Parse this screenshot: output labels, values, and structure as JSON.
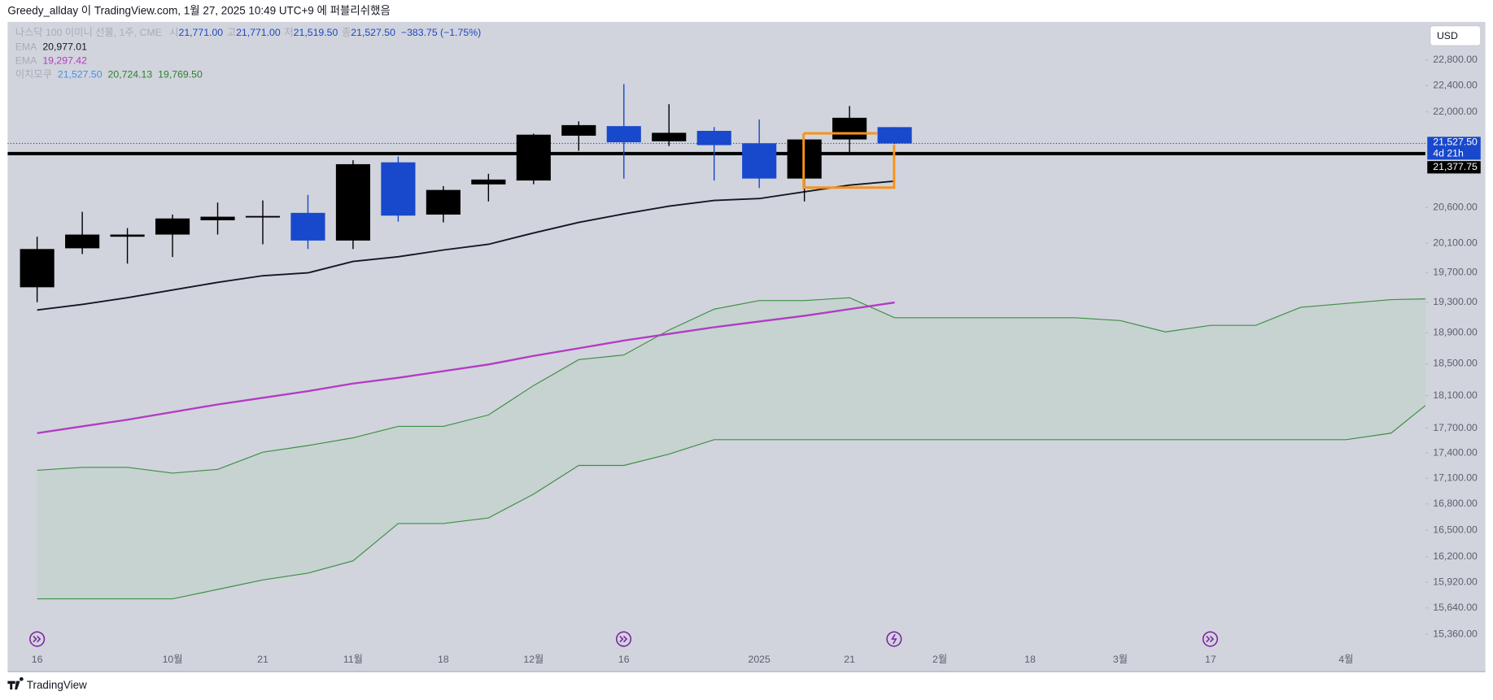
{
  "header": "Greedy_allday 이 TradingView.com, 1월 27, 2025 10:49 UTC+9 에 퍼블리쉬했음",
  "footer_brand": "TradingView",
  "chart_data": {
    "type": "candlestick",
    "currency": "USD",
    "log": true,
    "grid": false,
    "ylim": [
      14972,
      23405
    ],
    "yticks": [
      {
        "value": 22800,
        "label": "22,800.00"
      },
      {
        "value": 22400,
        "label": "22,400.00"
      },
      {
        "value": 22000,
        "label": "22,000.00"
      },
      {
        "value": 20600,
        "label": "20,600.00"
      },
      {
        "value": 20100,
        "label": "20,100.00"
      },
      {
        "value": 19700,
        "label": "19,700.00"
      },
      {
        "value": 19300,
        "label": "19,300.00"
      },
      {
        "value": 18900,
        "label": "18,900.00"
      },
      {
        "value": 18500,
        "label": "18,500.00"
      },
      {
        "value": 18100,
        "label": "18,100.00"
      },
      {
        "value": 17700,
        "label": "17,700.00"
      },
      {
        "value": 17400,
        "label": "17,400.00"
      },
      {
        "value": 17100,
        "label": "17,100.00"
      },
      {
        "value": 16800,
        "label": "16,800.00"
      },
      {
        "value": 16500,
        "label": "16,500.00"
      },
      {
        "value": 16200,
        "label": "16,200.00"
      },
      {
        "value": 15920,
        "label": "15,920.00"
      },
      {
        "value": 15640,
        "label": "15,640.00"
      },
      {
        "value": 15360,
        "label": "15,360.00"
      }
    ],
    "categories": [
      "16",
      null,
      null,
      "10월",
      null,
      "21",
      null,
      "11월",
      null,
      "18",
      null,
      "12월",
      null,
      "16",
      null,
      null,
      "2025",
      null,
      "21",
      null,
      "2월",
      null,
      "18",
      null,
      "3월",
      null,
      "17",
      null,
      null,
      "4월",
      null,
      null
    ],
    "up_color": "#000000",
    "down_color": "#1848cc",
    "open": [
      19500,
      20030,
      20190,
      20220,
      20420,
      20470,
      20524,
      20137,
      21250,
      20500,
      20930,
      20986,
      21643,
      21786,
      21560,
      21715,
      21530,
      21014,
      21587,
      21771,
      null,
      null,
      null,
      null,
      null,
      null,
      null,
      null,
      null,
      null,
      null,
      null
    ],
    "high": [
      20190,
      20540,
      20310,
      20500,
      20670,
      20700,
      20780,
      21280,
      21335,
      20905,
      21083,
      21673,
      21857,
      22424,
      22117,
      21772,
      21886,
      21590,
      22089,
      21771,
      null,
      null,
      null,
      null,
      null,
      null,
      null,
      null,
      null,
      null,
      null,
      null
    ],
    "low": [
      19300,
      19950,
      19820,
      19910,
      20220,
      20085,
      20020,
      20020,
      20400,
      20390,
      20686,
      20932,
      21420,
      21014,
      21489,
      20986,
      20877,
      20686,
      21375,
      21519.5,
      null,
      null,
      null,
      null,
      null,
      null,
      null,
      null,
      null,
      null,
      null,
      null
    ],
    "close": [
      20020,
      20220,
      20220,
      20445,
      20470,
      20480,
      20137,
      21223,
      20485,
      20850,
      21000,
      21658,
      21801,
      21545,
      21686,
      21503,
      21014,
      21587,
      21911.25,
      21527.5,
      null,
      null,
      null,
      null,
      null,
      null,
      null,
      null,
      null,
      null,
      null,
      null
    ],
    "lines": [
      {
        "color": "#131722",
        "values": [
          19197,
          19272,
          19361,
          19463,
          19566,
          19656,
          19694,
          19850,
          19914,
          20006,
          20085,
          20243,
          20390,
          20510,
          20619,
          20700,
          20727,
          20823,
          20919,
          20977.01,
          null,
          null,
          null,
          null,
          null,
          null,
          null,
          null,
          null,
          null,
          null,
          null
        ]
      },
      {
        "color": "#b33bc3",
        "values": [
          17639,
          17721,
          17802,
          17896,
          17990,
          18072,
          18156,
          18251,
          18323,
          18407,
          18492,
          18601,
          18699,
          18798,
          18885,
          18971,
          19046,
          19121,
          19209,
          19297.42,
          null,
          null,
          null,
          null,
          null,
          null,
          null,
          null,
          null,
          null,
          null,
          null
        ]
      }
    ],
    "cloud": {
      "color": "#3f8f45",
      "fill": "#c4d2cf",
      "upper": [
        17194,
        17228,
        17228,
        17160,
        17205,
        17409,
        17489,
        17582,
        17721,
        17721,
        17861,
        18226,
        18553,
        18613,
        18934,
        19209,
        19323,
        19323,
        19361,
        19096,
        19096,
        19096,
        19096,
        19096,
        19058,
        18910,
        18996,
        18996,
        19234,
        19285,
        19335,
        19348
      ],
      "lower": [
        15738,
        15738,
        15738,
        15738,
        15841,
        15945,
        16019,
        16155,
        16575,
        16575,
        16640,
        16914,
        17251,
        17251,
        17386,
        17559,
        17559,
        17559,
        17559,
        17559,
        17559,
        17559,
        17559,
        17559,
        17559,
        17559,
        17559,
        17559,
        17559,
        17559,
        17639,
        18085
      ]
    },
    "hline": {
      "value": 21377.75,
      "label": "21,377.75",
      "color": "#000000"
    },
    "last_price": {
      "value": 21527.5,
      "label": "21,527.50",
      "countdown": "4d 21h",
      "color": "#1848cc"
    },
    "legend": {
      "symbol": "나스닥 100 이미니 선물, 1주, CME",
      "ohlc": [
        {
          "key": "시",
          "value": "21,771.00"
        },
        {
          "key": "고",
          "value": "21,771.00"
        },
        {
          "key": "저",
          "value": "21,519.50"
        },
        {
          "key": "종",
          "value": "21,527.50"
        }
      ],
      "change": "−383.75 (−1.75%)",
      "value_color": "#1c47c7",
      "indicators": [
        {
          "name": "EMA",
          "values": [
            "20,977.01"
          ],
          "colors": [
            "#131722"
          ]
        },
        {
          "name": "EMA",
          "values": [
            "19,297.42"
          ],
          "colors": [
            "#b33bc3"
          ]
        },
        {
          "name": "이치모쿠",
          "values": [
            "21,527.50",
            "20,724.13",
            "19,769.50"
          ],
          "colors": [
            "#4a90e2",
            "#2e7d32",
            "#2e7d32"
          ]
        }
      ]
    }
  }
}
